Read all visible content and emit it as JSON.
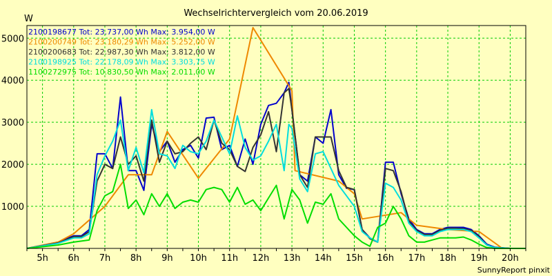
{
  "chart_data": {
    "type": "line",
    "title": "Wechselrichtervergleich vom 20.06.2019",
    "ylabel": "W",
    "xlabel": "",
    "credit": "SunnyReport pinxit",
    "xlim": [
      4.5,
      20.5
    ],
    "ylim": [
      0,
      5300
    ],
    "x_ticks": [
      5,
      6,
      7,
      8,
      9,
      10,
      11,
      12,
      13,
      14,
      15,
      16,
      17,
      18,
      19,
      20
    ],
    "x_tick_labels": [
      "5h",
      "6h",
      "7h",
      "8h",
      "9h",
      "10h",
      "11h",
      "12h",
      "13h",
      "14h",
      "15h",
      "16h",
      "17h",
      "18h",
      "19h",
      "20h"
    ],
    "y_ticks": [
      1000,
      2000,
      3000,
      4000,
      5000
    ],
    "y_tick_labels": [
      "1000",
      "2000",
      "3000",
      "4000",
      "5000"
    ],
    "grid": true,
    "legend_position": "top-left",
    "colors": {
      "background": "#ffffc0",
      "grid": "#00cc00",
      "axis": "#000000"
    },
    "series": [
      {
        "name": "2100198677",
        "legend": "2100198677 Tot: 23.737,00 Wh Max: 3.954,00 W",
        "color": "#0000cc",
        "x": [
          4.5,
          5.5,
          6.0,
          6.25,
          6.5,
          6.75,
          7.0,
          7.25,
          7.5,
          7.75,
          8.0,
          8.25,
          8.5,
          8.75,
          9.0,
          9.25,
          9.5,
          9.75,
          10.0,
          10.25,
          10.5,
          10.75,
          11.0,
          11.25,
          11.5,
          11.75,
          12.0,
          12.25,
          12.5,
          12.75,
          12.9,
          13.0,
          13.25,
          13.5,
          13.75,
          14.0,
          14.25,
          14.5,
          14.75,
          15.0,
          15.25,
          15.5,
          15.75,
          16.0,
          16.25,
          16.5,
          16.75,
          17.0,
          17.25,
          17.5,
          17.75,
          18.0,
          18.25,
          18.5,
          18.75,
          19.0,
          19.25,
          19.5,
          20.0,
          20.5
        ],
        "y": [
          0,
          150,
          300,
          300,
          450,
          2250,
          2250,
          1900,
          3600,
          1850,
          1850,
          1380,
          2950,
          2300,
          2550,
          2050,
          2350,
          2450,
          2150,
          3100,
          3120,
          2350,
          2450,
          1950,
          2600,
          2000,
          2950,
          3400,
          3450,
          3700,
          3950,
          3300,
          1750,
          1600,
          2650,
          2500,
          3300,
          1750,
          1430,
          1400,
          450,
          250,
          150,
          2050,
          2050,
          1300,
          700,
          450,
          350,
          350,
          450,
          500,
          500,
          500,
          450,
          300,
          100,
          30,
          0,
          0
        ]
      },
      {
        "name": "2100200749",
        "legend": "2100200749 Tot: 23.180,29 Wh Max: 5.252,00 W",
        "color": "#ee8800",
        "x": [
          4.5,
          5.5,
          6.0,
          7.0,
          7.75,
          8.5,
          9.0,
          10.0,
          11.0,
          11.75,
          13.0,
          13.1,
          14.5,
          15.0,
          15.25,
          16.5,
          17.0,
          18.0,
          19.0,
          19.75,
          20.5
        ],
        "y": [
          0,
          150,
          350,
          1000,
          1750,
          1750,
          2780,
          1670,
          2600,
          5250,
          3750,
          1850,
          1600,
          1300,
          700,
          850,
          550,
          450,
          400,
          0,
          0
        ]
      },
      {
        "name": "2100200683",
        "legend": "2100200683 Tot: 22.987,30 Wh Max: 3.812,00 W",
        "color": "#333333",
        "x": [
          4.5,
          5.5,
          6.0,
          6.25,
          6.5,
          6.75,
          7.0,
          7.25,
          7.5,
          7.75,
          8.0,
          8.25,
          8.5,
          8.75,
          9.0,
          9.25,
          9.5,
          9.75,
          10.0,
          10.25,
          10.5,
          10.75,
          11.0,
          11.25,
          11.5,
          11.75,
          12.0,
          12.25,
          12.5,
          12.75,
          12.9,
          13.0,
          13.25,
          13.5,
          13.75,
          14.0,
          14.25,
          14.5,
          14.75,
          15.0,
          15.25,
          15.5,
          15.75,
          16.0,
          16.25,
          16.5,
          16.75,
          17.0,
          17.25,
          17.5,
          17.75,
          18.0,
          18.25,
          18.5,
          18.75,
          19.0,
          19.25,
          19.5,
          20.0,
          20.5
        ],
        "y": [
          0,
          130,
          280,
          280,
          400,
          1600,
          2000,
          1900,
          2650,
          2000,
          2200,
          1600,
          3050,
          2050,
          2550,
          2250,
          2300,
          2500,
          2650,
          2350,
          3050,
          2500,
          2350,
          1950,
          1830,
          2400,
          2700,
          3250,
          2300,
          3700,
          3800,
          3300,
          1750,
          1450,
          2650,
          2650,
          2650,
          1850,
          1450,
          1400,
          450,
          230,
          150,
          1900,
          1850,
          1350,
          650,
          430,
          330,
          330,
          430,
          480,
          480,
          470,
          430,
          280,
          80,
          20,
          0,
          0
        ]
      },
      {
        "name": "2100198925",
        "legend": "2100198925 Tot: 22.178,09 Wh Max: 3.303,75 W",
        "color": "#00dddd",
        "x": [
          4.5,
          5.5,
          6.0,
          6.25,
          6.5,
          6.75,
          7.0,
          7.25,
          7.5,
          7.75,
          8.0,
          8.25,
          8.5,
          8.75,
          9.0,
          9.25,
          9.5,
          9.75,
          10.0,
          10.25,
          10.5,
          10.75,
          11.0,
          11.25,
          11.5,
          11.75,
          12.0,
          12.25,
          12.5,
          12.75,
          12.9,
          13.0,
          13.25,
          13.5,
          13.75,
          14.0,
          14.25,
          14.5,
          14.75,
          15.0,
          15.25,
          15.5,
          15.75,
          16.0,
          16.25,
          16.5,
          16.75,
          17.0,
          17.25,
          17.5,
          17.75,
          18.0,
          18.25,
          18.5,
          18.75,
          19.0,
          19.25,
          19.5,
          20.0,
          20.5
        ],
        "y": [
          0,
          120,
          250,
          250,
          350,
          1750,
          2200,
          2550,
          3050,
          1850,
          2400,
          1800,
          3300,
          2250,
          2200,
          1900,
          2450,
          2300,
          2250,
          2550,
          3050,
          2650,
          2250,
          3150,
          2400,
          2100,
          2200,
          2550,
          2950,
          1850,
          2950,
          2850,
          1650,
          1350,
          2250,
          2300,
          1900,
          1500,
          1250,
          1000,
          400,
          250,
          150,
          1550,
          1450,
          1150,
          600,
          400,
          300,
          300,
          400,
          450,
          450,
          450,
          400,
          250,
          80,
          20,
          0,
          0
        ]
      },
      {
        "name": "1100272975",
        "legend": "1100272975 Tot: 10.830,50 Wh Max: 2.011,00 W",
        "color": "#00dd00",
        "x": [
          4.5,
          5.5,
          6.0,
          6.5,
          6.75,
          7.0,
          7.25,
          7.5,
          7.75,
          8.0,
          8.25,
          8.5,
          8.75,
          9.0,
          9.25,
          9.5,
          9.75,
          10.0,
          10.25,
          10.5,
          10.75,
          11.0,
          11.25,
          11.5,
          11.75,
          12.0,
          12.25,
          12.5,
          12.75,
          13.0,
          13.25,
          13.5,
          13.75,
          14.0,
          14.25,
          14.5,
          14.75,
          15.0,
          15.25,
          15.5,
          15.75,
          16.0,
          16.25,
          16.5,
          16.75,
          17.0,
          17.25,
          17.5,
          17.75,
          18.0,
          18.25,
          18.5,
          18.75,
          19.0,
          19.25,
          19.5,
          20.0,
          20.5
        ],
        "y": [
          0,
          80,
          150,
          200,
          900,
          1250,
          1350,
          2000,
          950,
          1150,
          800,
          1300,
          1000,
          1300,
          950,
          1100,
          1150,
          1100,
          1400,
          1450,
          1400,
          1100,
          1450,
          1050,
          1150,
          900,
          1200,
          1500,
          700,
          1400,
          1150,
          600,
          1100,
          1050,
          1300,
          700,
          500,
          300,
          150,
          50,
          500,
          600,
          1000,
          700,
          300,
          150,
          150,
          200,
          250,
          250,
          250,
          270,
          200,
          100,
          20,
          0,
          0,
          0
        ]
      }
    ]
  }
}
